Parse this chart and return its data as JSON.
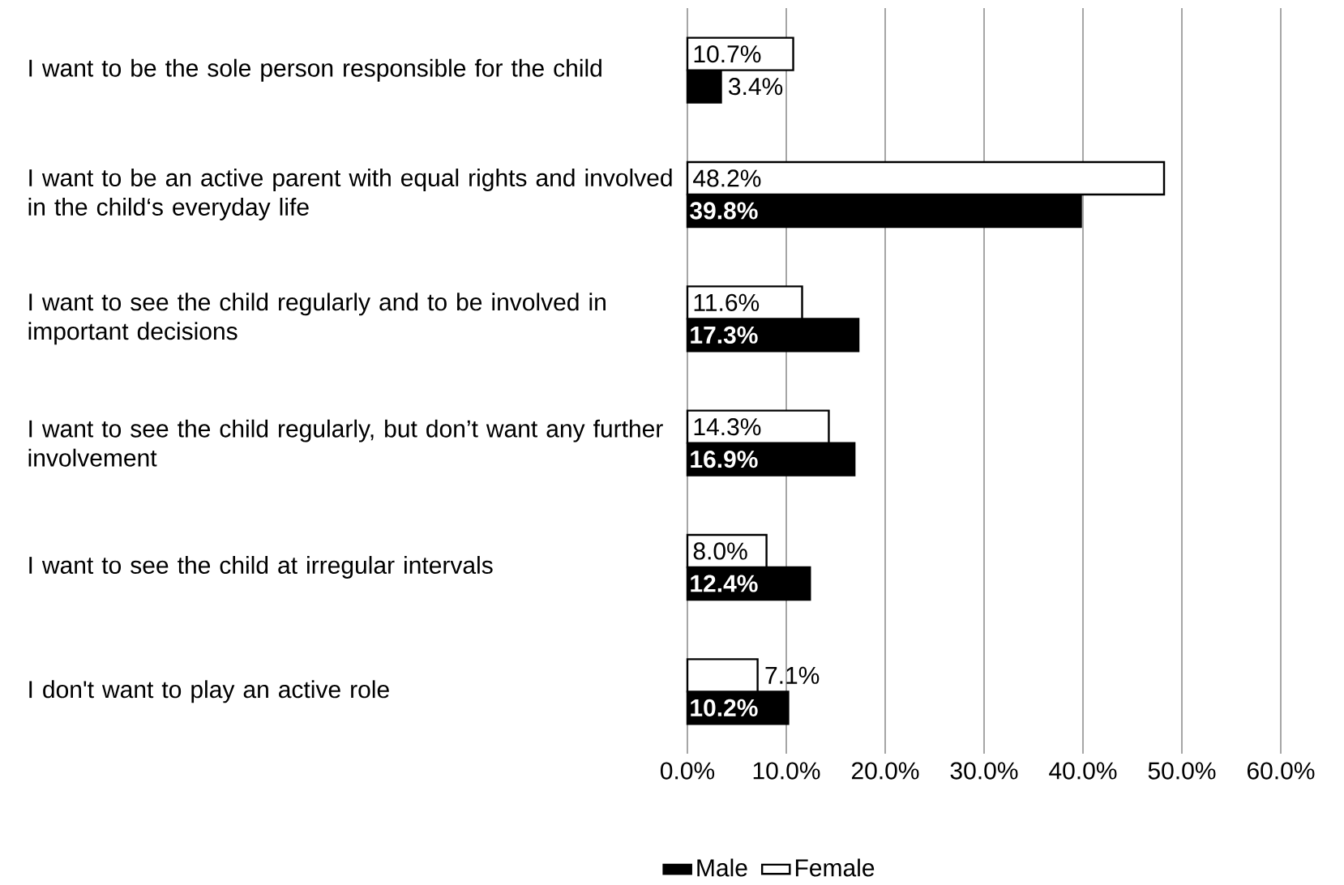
{
  "chart_data": {
    "type": "bar",
    "orientation": "horizontal",
    "categories": [
      "I want to be the sole person responsible for the child",
      "I want to be an active parent with equal rights and involved in the child‘s everyday life",
      "I want to see the child regularly and to be involved in important decisions",
      "I want to see the child regularly, but don’t want any further involvement",
      "I want to see the child at irregular intervals",
      "I don't want to play an active role"
    ],
    "series": [
      {
        "name": "Male",
        "color": "#000000",
        "values": [
          3.4,
          39.8,
          17.3,
          16.9,
          12.4,
          10.2
        ],
        "value_labels": [
          "3.4%",
          "39.8%",
          "17.3%",
          "16.9%",
          "12.4%",
          "10.2%"
        ]
      },
      {
        "name": "Female",
        "color": "#ffffff",
        "values": [
          10.7,
          48.2,
          11.6,
          14.3,
          8.0,
          7.1
        ],
        "value_labels": [
          "10.7%",
          "48.2%",
          "11.6%",
          "14.3%",
          "8.0%",
          "7.1%"
        ]
      }
    ],
    "xlim": [
      0,
      60
    ],
    "xticks": [
      {
        "value": 0,
        "label": "0.0%"
      },
      {
        "value": 10,
        "label": "10.0%"
      },
      {
        "value": 20,
        "label": "20.0%"
      },
      {
        "value": 30,
        "label": "30.0%"
      },
      {
        "value": 40,
        "label": "40.0%"
      },
      {
        "value": 50,
        "label": "50.0%"
      },
      {
        "value": 60,
        "label": "60.0%"
      }
    ],
    "grid": "x",
    "legend": "bottom"
  }
}
